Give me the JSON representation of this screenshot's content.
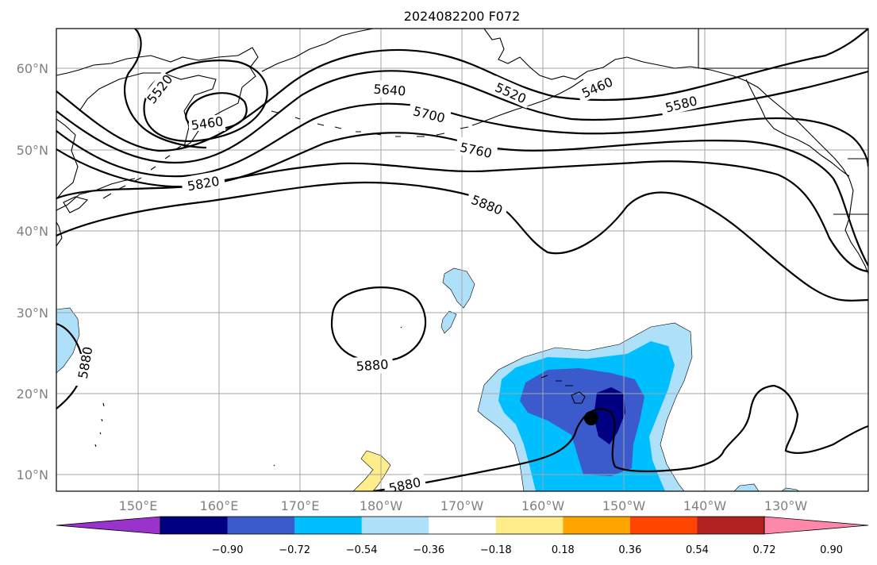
{
  "title": "2024082200 F072",
  "lat_labels": [
    "60°N",
    "50°N",
    "40°N",
    "30°N",
    "20°N",
    "10°N"
  ],
  "lon_labels": [
    "150°E",
    "160°E",
    "170°E",
    "180°W",
    "170°W",
    "160°W",
    "150°W",
    "140°W",
    "130°W"
  ],
  "contour_labels": [
    "5520",
    "5460",
    "5640",
    "5700",
    "5760",
    "5820",
    "5880",
    "5880",
    "5880",
    "5880",
    "5520",
    "5460",
    "5580"
  ],
  "colorbar": {
    "colors": [
      "#9933cc",
      "#000080",
      "#3b5bcc",
      "#00bfff",
      "#aee0fa",
      "#ffffff",
      "#ffec8b",
      "#ffa500",
      "#ff4500",
      "#b22222",
      "#ff88aa"
    ],
    "tick_labels": [
      "−0.90",
      "−0.72",
      "−0.54",
      "−0.36",
      "−0.18",
      "0.18",
      "0.36",
      "0.54",
      "0.72",
      "0.90"
    ]
  },
  "storm_marker": "storm-center-dot"
}
